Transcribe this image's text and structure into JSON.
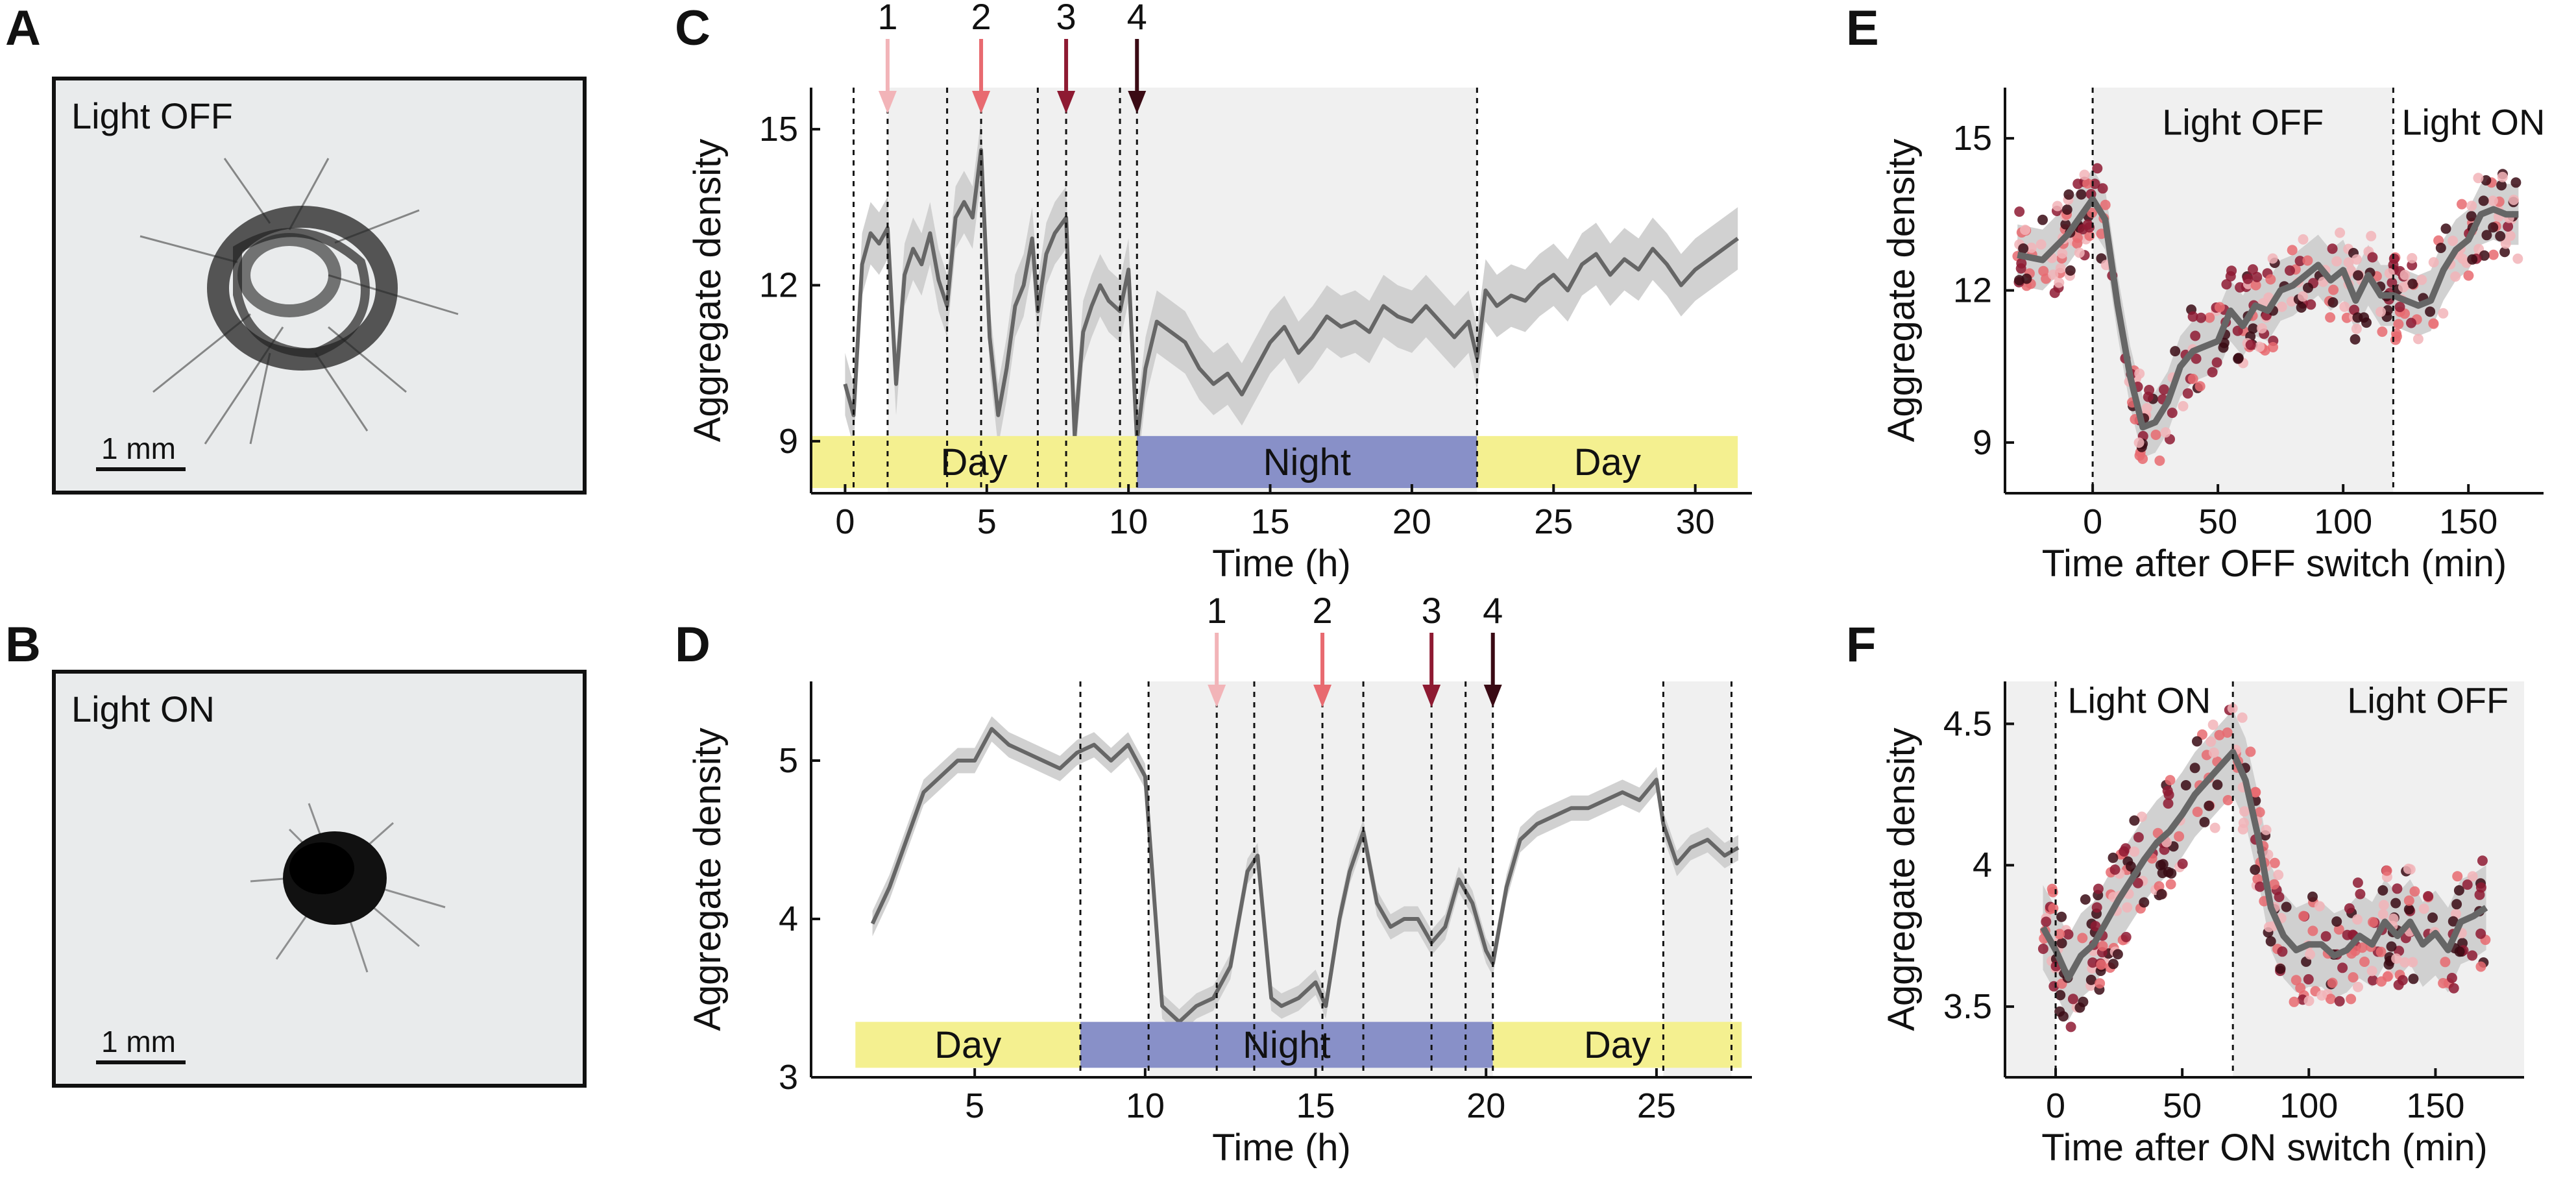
{
  "panels": {
    "A": {
      "letter": "A",
      "label": "Light OFF",
      "scale": "1 mm"
    },
    "B": {
      "letter": "B",
      "label": "Light ON",
      "scale": "1 mm"
    },
    "C": {
      "letter": "C"
    },
    "D": {
      "letter": "D"
    },
    "E": {
      "letter": "E"
    },
    "F": {
      "letter": "F"
    }
  },
  "colors": {
    "series": "#666666",
    "band": "#cccccc",
    "shade": "#f0f0f0",
    "day": "#f4f090",
    "night": "#8890c8",
    "arrows": [
      "#f2b4b8",
      "#e86a70",
      "#8e1a32",
      "#3a0a14"
    ]
  },
  "chart_data": [
    {
      "panel": "C",
      "type": "line",
      "ylabel": "Aggregate density",
      "xlabel": "Time (h)",
      "xlim": [
        -1.2,
        32
      ],
      "ylim": [
        8,
        15.8
      ],
      "xticks": [
        0,
        5,
        10,
        15,
        20,
        25,
        30
      ],
      "yticks": [
        9,
        12,
        15
      ],
      "shaded_x": [
        [
          1.5,
          22.3
        ]
      ],
      "dashed_x": [
        0.3,
        1.5,
        3.6,
        4.8,
        6.8,
        7.8,
        9.7,
        10.3,
        22.3
      ],
      "bars": [
        {
          "label": "Day",
          "x0": -1.2,
          "x1": 10.3,
          "type": "day"
        },
        {
          "label": "Night",
          "x0": 10.3,
          "x1": 22.3,
          "type": "night"
        },
        {
          "label": "Day",
          "x0": 22.3,
          "x1": 31.5,
          "type": "day"
        }
      ],
      "bar_y": [
        8.1,
        9.1
      ],
      "arrows": [
        {
          "label": "1",
          "x": 1.5
        },
        {
          "label": "2",
          "x": 4.8
        },
        {
          "label": "3",
          "x": 7.8
        },
        {
          "label": "4",
          "x": 10.3
        }
      ],
      "series": [
        {
          "x": [
            0,
            0.3,
            0.6,
            0.9,
            1.2,
            1.5,
            1.8,
            2.1,
            2.4,
            2.7,
            3.0,
            3.3,
            3.6,
            3.9,
            4.2,
            4.5,
            4.8,
            5.1,
            5.4,
            5.7,
            6.0,
            6.3,
            6.6,
            6.8,
            7.1,
            7.4,
            7.8,
            8.1,
            8.4,
            8.7,
            9.0,
            9.3,
            9.7,
            10.0,
            10.3,
            10.6,
            11,
            11.5,
            12,
            12.5,
            13,
            13.5,
            14,
            14.5,
            15,
            15.5,
            16,
            16.5,
            17,
            17.5,
            18,
            18.5,
            19,
            19.5,
            20,
            20.5,
            21,
            21.5,
            22,
            22.3,
            22.6,
            23,
            23.5,
            24,
            24.5,
            25,
            25.5,
            26,
            26.5,
            27,
            27.5,
            28,
            28.5,
            29,
            29.5,
            30,
            30.5,
            31,
            31.5
          ],
          "y": [
            10.1,
            9.5,
            12.4,
            13.0,
            12.8,
            13.1,
            10.1,
            12.2,
            12.7,
            12.4,
            13.0,
            12.1,
            11.6,
            13.3,
            13.6,
            13.3,
            14.6,
            11.0,
            9.5,
            10.4,
            11.6,
            12.0,
            12.9,
            11.5,
            12.6,
            13.0,
            13.3,
            9.1,
            11.1,
            11.6,
            12.0,
            11.7,
            11.5,
            12.3,
            9.0,
            10.4,
            11.3,
            11.1,
            10.9,
            10.4,
            10.1,
            10.3,
            9.9,
            10.4,
            10.9,
            11.2,
            10.7,
            11.0,
            11.4,
            11.2,
            11.3,
            11.1,
            11.6,
            11.4,
            11.3,
            11.6,
            11.3,
            11.0,
            11.3,
            10.6,
            11.9,
            11.6,
            11.8,
            11.7,
            12.0,
            12.2,
            11.9,
            12.4,
            12.6,
            12.2,
            12.5,
            12.3,
            12.7,
            12.4,
            12.0,
            12.3,
            12.5,
            12.7,
            12.9
          ],
          "err": 0.6
        }
      ]
    },
    {
      "panel": "D",
      "type": "line",
      "ylabel": "Aggregate density",
      "xlabel": "Time (h)",
      "xlim": [
        0.2,
        27.8
      ],
      "ylim": [
        3,
        5.5
      ],
      "xticks": [
        5,
        10,
        15,
        20,
        25
      ],
      "yticks": [
        3,
        4,
        5
      ],
      "shaded_x": [
        [
          10.1,
          20.2
        ],
        [
          25.2,
          27.2
        ]
      ],
      "dashed_x": [
        8.1,
        10.1,
        12.1,
        13.2,
        15.2,
        16.4,
        18.4,
        19.4,
        20.2,
        25.2,
        27.2
      ],
      "bars": [
        {
          "label": "Day",
          "x0": 1.5,
          "x1": 8.1,
          "type": "day"
        },
        {
          "label": "Night",
          "x0": 8.1,
          "x1": 20.2,
          "type": "night"
        },
        {
          "label": "Day",
          "x0": 20.2,
          "x1": 27.5,
          "type": "day"
        }
      ],
      "bar_y": [
        3.06,
        3.35
      ],
      "arrows": [
        {
          "label": "1",
          "x": 12.1
        },
        {
          "label": "2",
          "x": 15.2
        },
        {
          "label": "3",
          "x": 18.4
        },
        {
          "label": "4",
          "x": 20.2
        }
      ],
      "series": [
        {
          "x": [
            2,
            2.5,
            3,
            3.5,
            4,
            4.5,
            5,
            5.5,
            6,
            6.5,
            7,
            7.5,
            8,
            8.5,
            9,
            9.5,
            10,
            10.5,
            11,
            11.5,
            12,
            12.5,
            13,
            13.3,
            13.7,
            14,
            14.5,
            15,
            15.3,
            15.7,
            16,
            16.4,
            16.8,
            17.2,
            17.6,
            18,
            18.4,
            18.8,
            19.2,
            19.6,
            20,
            20.2,
            20.6,
            21,
            21.5,
            22,
            22.5,
            23,
            23.5,
            24,
            24.5,
            25,
            25.2,
            25.6,
            26,
            26.5,
            27,
            27.4
          ],
          "y": [
            3.97,
            4.2,
            4.5,
            4.8,
            4.9,
            5.0,
            5.0,
            5.2,
            5.1,
            5.05,
            5.0,
            4.95,
            5.05,
            5.1,
            5.0,
            5.1,
            4.9,
            3.45,
            3.35,
            3.45,
            3.5,
            3.7,
            4.3,
            4.4,
            3.5,
            3.45,
            3.5,
            3.6,
            3.45,
            4.0,
            4.3,
            4.55,
            4.1,
            3.95,
            4.0,
            4.0,
            3.85,
            3.95,
            4.25,
            4.1,
            3.8,
            3.72,
            4.2,
            4.5,
            4.6,
            4.65,
            4.7,
            4.7,
            4.75,
            4.8,
            4.75,
            4.88,
            4.6,
            4.35,
            4.45,
            4.5,
            4.4,
            4.45
          ],
          "err": 0.08
        }
      ]
    },
    {
      "panel": "E",
      "type": "scatter",
      "ylabel": "Aggregate density",
      "xlabel": "Time after OFF switch (min)",
      "xlim": [
        -35,
        180
      ],
      "ylim": [
        8,
        16
      ],
      "xticks": [
        0,
        50,
        100,
        150
      ],
      "yticks": [
        9,
        12,
        15
      ],
      "shaded_x": [
        [
          0,
          120
        ]
      ],
      "dashed_x": [
        0,
        120
      ],
      "annotations": [
        {
          "text": "Light OFF",
          "x": 60,
          "y": 15.3
        },
        {
          "text": "Light ON",
          "x": 152,
          "y": 15.3
        }
      ],
      "mean": {
        "x": [
          -30,
          -20,
          -10,
          0,
          5,
          10,
          15,
          20,
          25,
          30,
          35,
          40,
          45,
          50,
          55,
          60,
          65,
          70,
          75,
          80,
          85,
          90,
          95,
          100,
          105,
          110,
          115,
          120,
          125,
          130,
          135,
          140,
          145,
          150,
          155,
          160,
          165,
          170
        ],
        "y": [
          12.7,
          12.6,
          13.1,
          13.8,
          13.4,
          11.7,
          10.3,
          9.3,
          9.4,
          9.8,
          10.5,
          10.8,
          10.9,
          11.0,
          11.6,
          11.3,
          11.7,
          11.6,
          12.0,
          12.1,
          12.3,
          12.5,
          12.2,
          12.4,
          11.8,
          12.3,
          11.9,
          11.9,
          11.8,
          11.7,
          11.8,
          12.4,
          12.8,
          13.0,
          13.5,
          13.6,
          13.5,
          13.5
        ],
        "err": 0.6
      },
      "scatter": {
        "xspan": [
          -30,
          170
        ],
        "noise": 0.9,
        "count": 320
      }
    },
    {
      "panel": "F",
      "type": "scatter",
      "ylabel": "Aggregate density",
      "xlabel": "Time after ON switch (min)",
      "xlim": [
        -20,
        185
      ],
      "ylim": [
        3.25,
        4.65
      ],
      "xticks": [
        0,
        50,
        100,
        150
      ],
      "yticks": [
        3.5,
        4,
        4.5
      ],
      "shaded_x": [
        [
          -20,
          0
        ],
        [
          70,
          185
        ]
      ],
      "dashed_x": [
        0,
        70
      ],
      "annotations": [
        {
          "text": "Light ON",
          "x": 33,
          "y": 4.58
        },
        {
          "text": "Light OFF",
          "x": 147,
          "y": 4.58
        }
      ],
      "mean": {
        "x": [
          -5,
          0,
          5,
          10,
          15,
          20,
          25,
          30,
          35,
          40,
          45,
          50,
          55,
          60,
          65,
          70,
          75,
          80,
          85,
          90,
          95,
          100,
          105,
          110,
          115,
          120,
          125,
          130,
          135,
          140,
          145,
          150,
          155,
          160,
          165,
          170
        ],
        "y": [
          3.78,
          3.7,
          3.6,
          3.68,
          3.72,
          3.8,
          3.88,
          3.95,
          4.02,
          4.08,
          4.12,
          4.18,
          4.25,
          4.3,
          4.35,
          4.4,
          4.3,
          4.1,
          3.85,
          3.75,
          3.7,
          3.72,
          3.72,
          3.68,
          3.7,
          3.75,
          3.72,
          3.8,
          3.75,
          3.8,
          3.72,
          3.76,
          3.7,
          3.8,
          3.82,
          3.85
        ],
        "err": 0.15
      },
      "scatter": {
        "xspan": [
          -5,
          170
        ],
        "noise": 0.2,
        "count": 320
      }
    }
  ]
}
